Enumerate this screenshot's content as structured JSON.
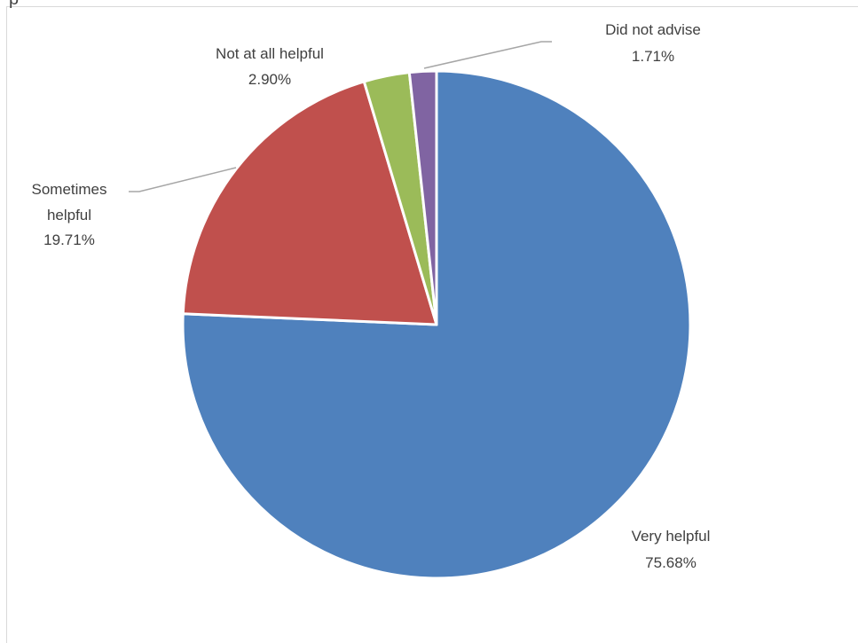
{
  "chart_data": {
    "type": "pie",
    "title": "",
    "legend": "none",
    "start_angle_deg": 0,
    "direction": "clockwise",
    "slices": [
      {
        "name": "Very helpful",
        "label_lines": [
          "Very helpful"
        ],
        "value_label": "75.68%",
        "value": 75.68,
        "color": "#4f81bd"
      },
      {
        "name": "Sometimes helpful",
        "label_lines": [
          "Sometimes",
          "helpful"
        ],
        "value_label": "19.71%",
        "value": 19.71,
        "color": "#c0504d"
      },
      {
        "name": "Not at all helpful",
        "label_lines": [
          "Not at all helpful"
        ],
        "value_label": "2.90%",
        "value": 2.9,
        "color": "#9bbb59"
      },
      {
        "name": "Did not advise",
        "label_lines": [
          "Did not advise"
        ],
        "value_label": "1.71%",
        "value": 1.71,
        "color": "#8064a2"
      }
    ],
    "leader_line_color": "#a6a6a6",
    "slice_border_color": "#ffffff"
  }
}
